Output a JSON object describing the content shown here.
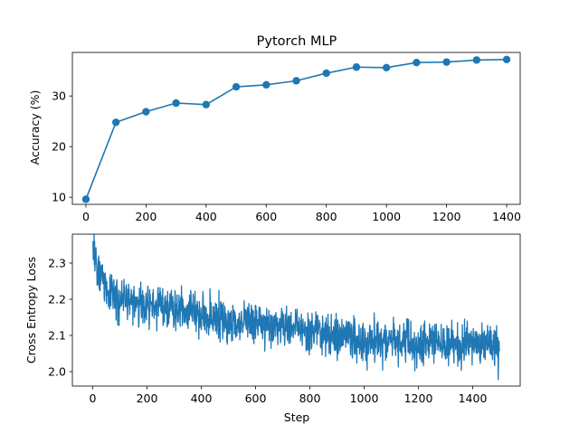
{
  "chart_data": [
    {
      "type": "line",
      "title": "Pytorch MLP",
      "xlabel": "",
      "ylabel": "Accuracy (%)",
      "xlim": [
        -45,
        1445
      ],
      "ylim": [
        8.6,
        38.6
      ],
      "xticks": [
        0,
        200,
        400,
        600,
        800,
        1000,
        1200,
        1400
      ],
      "yticks": [
        10,
        20,
        30
      ],
      "markers": true,
      "color": "#1f77b4",
      "x": [
        0,
        100,
        200,
        300,
        400,
        500,
        600,
        700,
        800,
        900,
        1000,
        1100,
        1200,
        1300,
        1400
      ],
      "y": [
        9.6,
        24.8,
        26.9,
        28.6,
        28.3,
        31.8,
        32.2,
        33.0,
        34.5,
        35.7,
        35.6,
        36.6,
        36.7,
        37.1,
        37.2
      ]
    },
    {
      "type": "line",
      "title": "",
      "xlabel": "Step",
      "ylabel": "Cross Entropy Loss",
      "xlim": [
        -75,
        1575
      ],
      "ylim": [
        1.96,
        2.38
      ],
      "xticks": [
        0,
        200,
        400,
        600,
        800,
        1000,
        1200,
        1400
      ],
      "yticks": [
        2.0,
        2.1,
        2.2,
        2.3
      ],
      "markers": false,
      "color": "#1f77b4",
      "noise_seed": 7,
      "x": [
        0,
        5,
        10,
        20,
        30,
        40,
        60,
        80,
        100,
        150,
        200,
        250,
        300,
        350,
        400,
        450,
        500,
        550,
        600,
        650,
        700,
        750,
        800,
        850,
        900,
        950,
        1000,
        1050,
        1100,
        1150,
        1200,
        1250,
        1300,
        1350,
        1400,
        1450,
        1499
      ],
      "y": [
        2.35,
        2.33,
        2.3,
        2.28,
        2.26,
        2.25,
        2.23,
        2.21,
        2.2,
        2.195,
        2.19,
        2.18,
        2.17,
        2.165,
        2.155,
        2.15,
        2.14,
        2.135,
        2.13,
        2.125,
        2.12,
        2.115,
        2.11,
        2.105,
        2.1,
        2.095,
        2.09,
        2.088,
        2.085,
        2.082,
        2.08,
        2.078,
        2.076,
        2.075,
        2.074,
        2.072,
        2.07
      ],
      "noise_amplitude": [
        0.02,
        0.04,
        0.05,
        0.05,
        0.05,
        0.05,
        0.045,
        0.045,
        0.045,
        0.045,
        0.045,
        0.045,
        0.045,
        0.045,
        0.045,
        0.045,
        0.045,
        0.045,
        0.045,
        0.045,
        0.045,
        0.045,
        0.045,
        0.045,
        0.045,
        0.045,
        0.045,
        0.045,
        0.045,
        0.045,
        0.045,
        0.045,
        0.045,
        0.045,
        0.045,
        0.045,
        0.045
      ]
    }
  ]
}
